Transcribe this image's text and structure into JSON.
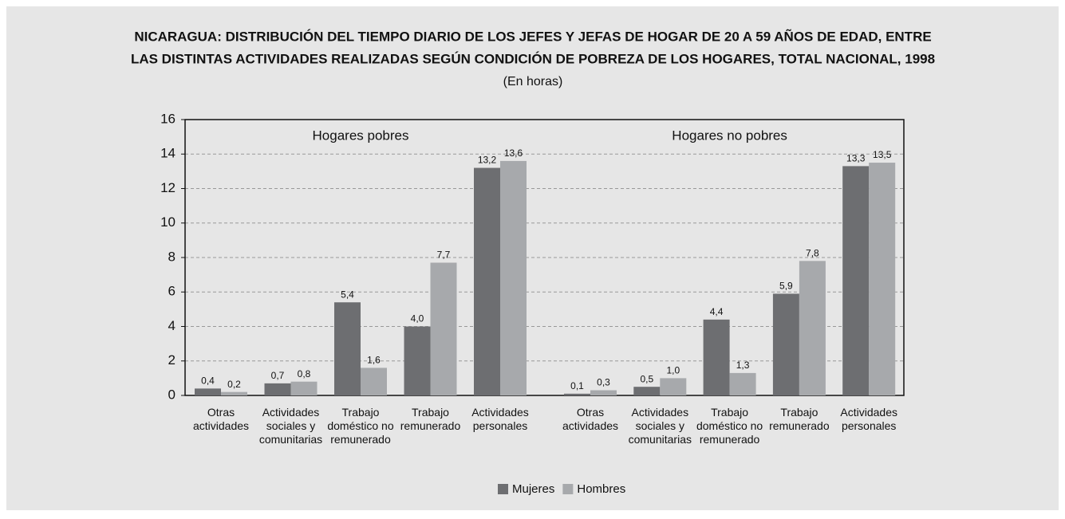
{
  "chart_data": {
    "type": "bar",
    "title": "NICARAGUA: DISTRIBUCIÓN DEL TIEMPO DIARIO DE LOS JEFES Y JEFAS DE HOGAR DE 20 A 59 AÑOS DE EDAD, ENTRE",
    "title_line2": "LAS DISTINTAS ACTIVIDADES REALIZADAS SEGÚN CONDICIÓN DE POBREZA DE LOS HOGARES, TOTAL NACIONAL, 1998",
    "subtitle": "(En horas)",
    "annotations": [
      "Hogares pobres",
      "Hogares no pobres"
    ],
    "categories": [
      "Otras actividades",
      "Actividades sociales y comunitarias",
      "Trabajo doméstico no remunerado",
      "Trabajo remunerado",
      "Actividades personales",
      "Otras actividades",
      "Actividades sociales y comunitarias",
      "Trabajo doméstico no remunerado",
      "Trabajo remunerado",
      "Actividades personales"
    ],
    "series": [
      {
        "name": "Mujeres",
        "color": "#6d6e71",
        "values": [
          0.4,
          0.7,
          5.4,
          4.0,
          13.2,
          0.1,
          0.5,
          4.4,
          5.9,
          13.3
        ],
        "value_labels": [
          "0,4",
          "0,7",
          "5,4",
          "4,0",
          "13,2",
          "0,1",
          "0,5",
          "4,4",
          "5,9",
          "13,3"
        ]
      },
      {
        "name": "Hombres",
        "color": "#a7a9ac",
        "values": [
          0.2,
          0.8,
          1.6,
          7.7,
          13.6,
          0.3,
          1.0,
          1.3,
          7.8,
          13.5
        ],
        "value_labels": [
          "0,2",
          "0,8",
          "1,6",
          "7,7",
          "13,6",
          "0,3",
          "1,0",
          "1,3",
          "7,8",
          "13,5"
        ]
      }
    ],
    "ylim": [
      0,
      16
    ],
    "yticks": [
      0,
      2,
      4,
      6,
      8,
      10,
      12,
      14,
      16
    ],
    "grid": true,
    "legend": "bottom"
  }
}
